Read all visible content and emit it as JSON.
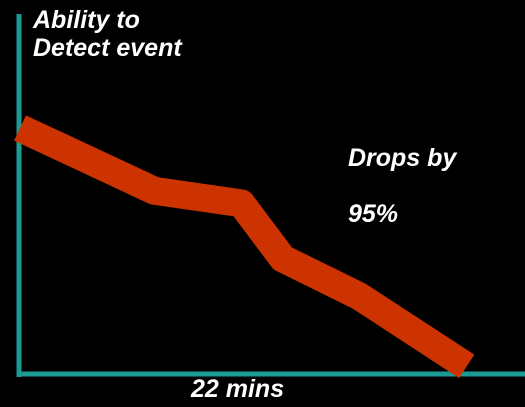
{
  "chart_data": {
    "type": "line",
    "title": "",
    "ylabel_lines": [
      "Ability to",
      "Detect event"
    ],
    "xlabel": "22 mins",
    "annotation_lines": [
      "Drops by",
      "95%"
    ],
    "xlim": [
      0,
      22
    ],
    "ylim": [
      0,
      100
    ],
    "x_unit": "mins",
    "y_unit": "%",
    "grid": false,
    "series": [
      {
        "color": "#cc3300",
        "x": [
          0,
          6.5,
          10.7,
          12.7,
          16.4,
          21.6
        ],
        "y": [
          100,
          75,
          70,
          48,
          33,
          5
        ]
      }
    ]
  },
  "colors": {
    "background": "#000000",
    "axis": "#1c9a94",
    "line": "#cc3300",
    "text": "#ffffff"
  }
}
